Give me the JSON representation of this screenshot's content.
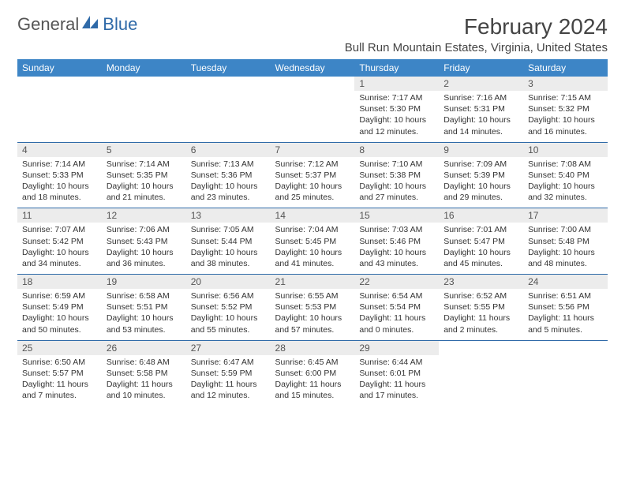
{
  "logo": {
    "part1": "General",
    "part2": "Blue"
  },
  "title": "February 2024",
  "location": "Bull Run Mountain Estates, Virginia, United States",
  "colors": {
    "header_bg": "#3d85c6",
    "header_text": "#ffffff",
    "row_border": "#2f6aa8",
    "daynum_bg": "#ececec",
    "logo_blue": "#2f6aa8"
  },
  "daynames": [
    "Sunday",
    "Monday",
    "Tuesday",
    "Wednesday",
    "Thursday",
    "Friday",
    "Saturday"
  ],
  "weeks": [
    [
      null,
      null,
      null,
      null,
      {
        "n": "1",
        "sr": "7:17 AM",
        "ss": "5:30 PM",
        "dl": "10 hours and 12 minutes."
      },
      {
        "n": "2",
        "sr": "7:16 AM",
        "ss": "5:31 PM",
        "dl": "10 hours and 14 minutes."
      },
      {
        "n": "3",
        "sr": "7:15 AM",
        "ss": "5:32 PM",
        "dl": "10 hours and 16 minutes."
      }
    ],
    [
      {
        "n": "4",
        "sr": "7:14 AM",
        "ss": "5:33 PM",
        "dl": "10 hours and 18 minutes."
      },
      {
        "n": "5",
        "sr": "7:14 AM",
        "ss": "5:35 PM",
        "dl": "10 hours and 21 minutes."
      },
      {
        "n": "6",
        "sr": "7:13 AM",
        "ss": "5:36 PM",
        "dl": "10 hours and 23 minutes."
      },
      {
        "n": "7",
        "sr": "7:12 AM",
        "ss": "5:37 PM",
        "dl": "10 hours and 25 minutes."
      },
      {
        "n": "8",
        "sr": "7:10 AM",
        "ss": "5:38 PM",
        "dl": "10 hours and 27 minutes."
      },
      {
        "n": "9",
        "sr": "7:09 AM",
        "ss": "5:39 PM",
        "dl": "10 hours and 29 minutes."
      },
      {
        "n": "10",
        "sr": "7:08 AM",
        "ss": "5:40 PM",
        "dl": "10 hours and 32 minutes."
      }
    ],
    [
      {
        "n": "11",
        "sr": "7:07 AM",
        "ss": "5:42 PM",
        "dl": "10 hours and 34 minutes."
      },
      {
        "n": "12",
        "sr": "7:06 AM",
        "ss": "5:43 PM",
        "dl": "10 hours and 36 minutes."
      },
      {
        "n": "13",
        "sr": "7:05 AM",
        "ss": "5:44 PM",
        "dl": "10 hours and 38 minutes."
      },
      {
        "n": "14",
        "sr": "7:04 AM",
        "ss": "5:45 PM",
        "dl": "10 hours and 41 minutes."
      },
      {
        "n": "15",
        "sr": "7:03 AM",
        "ss": "5:46 PM",
        "dl": "10 hours and 43 minutes."
      },
      {
        "n": "16",
        "sr": "7:01 AM",
        "ss": "5:47 PM",
        "dl": "10 hours and 45 minutes."
      },
      {
        "n": "17",
        "sr": "7:00 AM",
        "ss": "5:48 PM",
        "dl": "10 hours and 48 minutes."
      }
    ],
    [
      {
        "n": "18",
        "sr": "6:59 AM",
        "ss": "5:49 PM",
        "dl": "10 hours and 50 minutes."
      },
      {
        "n": "19",
        "sr": "6:58 AM",
        "ss": "5:51 PM",
        "dl": "10 hours and 53 minutes."
      },
      {
        "n": "20",
        "sr": "6:56 AM",
        "ss": "5:52 PM",
        "dl": "10 hours and 55 minutes."
      },
      {
        "n": "21",
        "sr": "6:55 AM",
        "ss": "5:53 PM",
        "dl": "10 hours and 57 minutes."
      },
      {
        "n": "22",
        "sr": "6:54 AM",
        "ss": "5:54 PM",
        "dl": "11 hours and 0 minutes."
      },
      {
        "n": "23",
        "sr": "6:52 AM",
        "ss": "5:55 PM",
        "dl": "11 hours and 2 minutes."
      },
      {
        "n": "24",
        "sr": "6:51 AM",
        "ss": "5:56 PM",
        "dl": "11 hours and 5 minutes."
      }
    ],
    [
      {
        "n": "25",
        "sr": "6:50 AM",
        "ss": "5:57 PM",
        "dl": "11 hours and 7 minutes."
      },
      {
        "n": "26",
        "sr": "6:48 AM",
        "ss": "5:58 PM",
        "dl": "11 hours and 10 minutes."
      },
      {
        "n": "27",
        "sr": "6:47 AM",
        "ss": "5:59 PM",
        "dl": "11 hours and 12 minutes."
      },
      {
        "n": "28",
        "sr": "6:45 AM",
        "ss": "6:00 PM",
        "dl": "11 hours and 15 minutes."
      },
      {
        "n": "29",
        "sr": "6:44 AM",
        "ss": "6:01 PM",
        "dl": "11 hours and 17 minutes."
      },
      null,
      null
    ]
  ],
  "labels": {
    "sunrise": "Sunrise: ",
    "sunset": "Sunset: ",
    "daylight": "Daylight: "
  }
}
